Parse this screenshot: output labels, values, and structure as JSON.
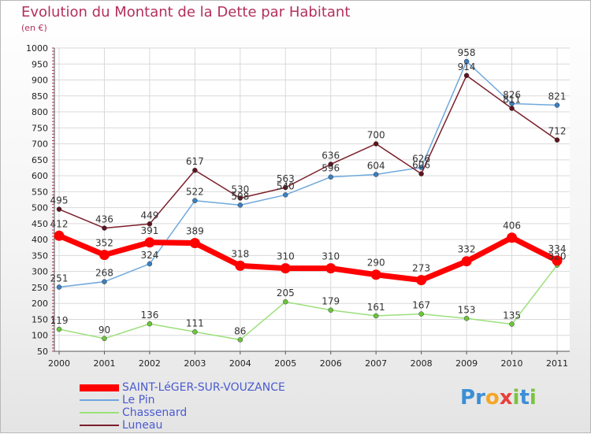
{
  "chart_data": {
    "type": "line",
    "title": "Evolution du Montant de la Dette par Habitant",
    "subtitle": "(en €)",
    "xlabel": "",
    "ylabel": "",
    "categories": [
      "2000",
      "2001",
      "2002",
      "2003",
      "2004",
      "2005",
      "2006",
      "2007",
      "2008",
      "2009",
      "2010",
      "2011"
    ],
    "ylim": [
      50,
      1000
    ],
    "yticks": [
      50,
      100,
      150,
      200,
      250,
      300,
      350,
      400,
      450,
      500,
      550,
      600,
      650,
      700,
      750,
      800,
      850,
      900,
      950,
      1000
    ],
    "grid": true,
    "legend_position": "bottom-left",
    "series": [
      {
        "name": "SAINT-LéGER-SUR-VOUZANCE",
        "color": "#ff0000",
        "marker": "#ff0000",
        "highlight": true,
        "values": [
          412,
          352,
          391,
          389,
          318,
          310,
          310,
          290,
          273,
          332,
          406,
          334
        ]
      },
      {
        "name": "Le Pin",
        "color": "#6fa8dc",
        "marker": "#3c7fc0",
        "highlight": false,
        "values": [
          251,
          268,
          324,
          522,
          508,
          540,
          596,
          604,
          626,
          958,
          826,
          821
        ]
      },
      {
        "name": "Chassenard",
        "color": "#9be07a",
        "marker": "#6cc63c",
        "highlight": false,
        "values": [
          119,
          90,
          136,
          111,
          86,
          205,
          179,
          161,
          167,
          153,
          135,
          320
        ]
      },
      {
        "name": "Luneau",
        "color": "#7a1f2b",
        "marker": "#5e1420",
        "highlight": false,
        "values": [
          495,
          436,
          449,
          617,
          530,
          563,
          636,
          700,
          606,
          914,
          811,
          712
        ]
      }
    ]
  },
  "logo": {
    "text": "Proxiti",
    "letters": [
      "P",
      "r",
      "o",
      "x",
      "i",
      "t",
      "i"
    ],
    "colors": [
      "#3a8fd6",
      "#3a8fd6",
      "#f5a623",
      "#e8403a",
      "#7cc242",
      "#3a8fd6",
      "#7cc242"
    ]
  }
}
